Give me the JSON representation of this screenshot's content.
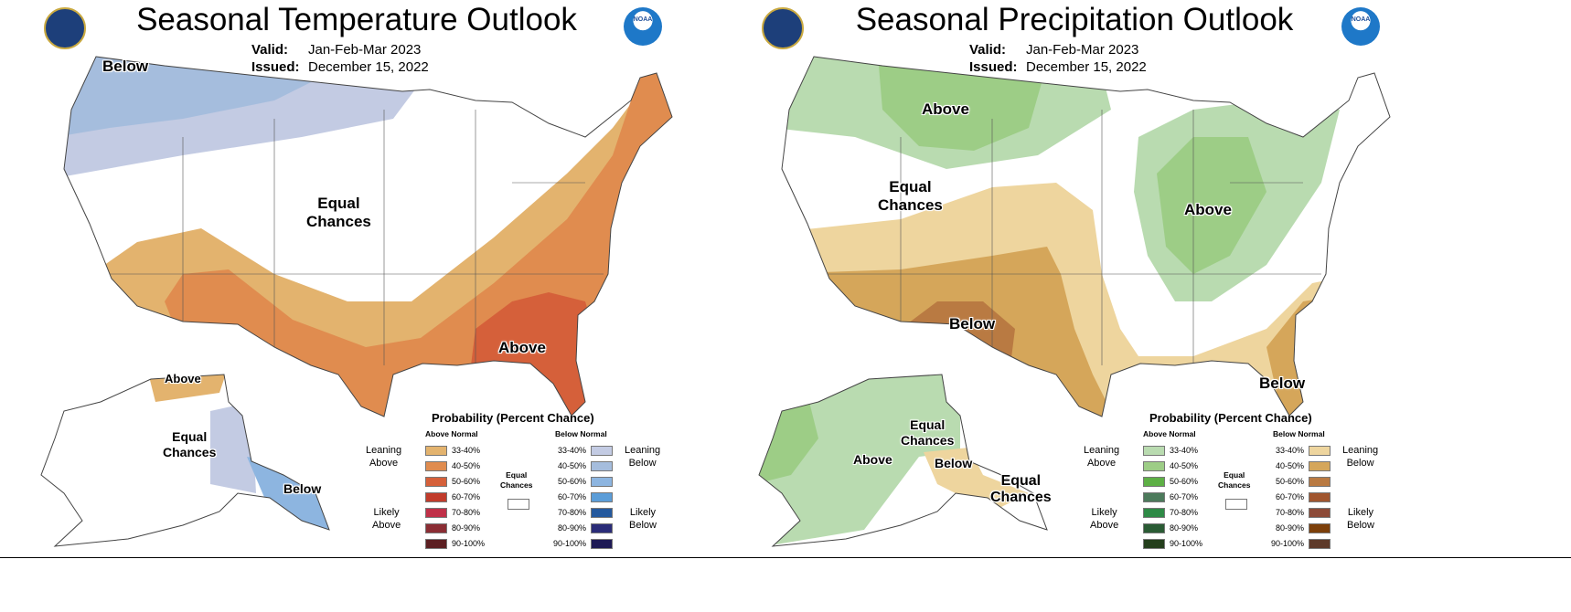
{
  "panels": [
    {
      "title": "Seasonal Temperature Outlook",
      "valid_label": "Valid:",
      "valid": "Jan-Feb-Mar 2023",
      "issued_label": "Issued:",
      "issued": "December 15, 2022",
      "logos": {
        "left": "department-of-commerce-seal",
        "right": "noaa-logo",
        "right_text": "NOAA"
      },
      "map_labels": [
        "Below",
        "Equal\nChances",
        "Above",
        "Above",
        "Equal\nChances",
        "Below"
      ],
      "legend": {
        "title": "Probability (Percent Chance)",
        "above_header": "Above Normal",
        "below_header": "Below Normal",
        "leaning_above": "Leaning\nAbove",
        "likely_above": "Likely\nAbove",
        "leaning_below": "Leaning\nBelow",
        "likely_below": "Likely\nBelow",
        "equal": "Equal\nChances",
        "ranges": [
          "33-40%",
          "40-50%",
          "50-60%",
          "60-70%",
          "70-80%",
          "80-90%",
          "90-100%"
        ],
        "above_colors": [
          "#e3b36e",
          "#e08c4f",
          "#d5603a",
          "#c13b2b",
          "#c03048",
          "#8b2d34",
          "#5c1f22"
        ],
        "below_colors": [
          "#c3cbe3",
          "#a5bddd",
          "#8db5e0",
          "#5b9dd8",
          "#24599e",
          "#2a2c78",
          "#1e1a55"
        ]
      }
    },
    {
      "title": "Seasonal Precipitation Outlook",
      "valid_label": "Valid:",
      "valid": "Jan-Feb-Mar 2023",
      "issued_label": "Issued:",
      "issued": "December 15, 2022",
      "logos": {
        "left": "department-of-commerce-seal",
        "right": "noaa-logo",
        "right_text": "NOAA"
      },
      "map_labels": [
        "Above",
        "Equal\nChances",
        "Above",
        "Below",
        "Below",
        "Equal\nChances",
        "Above",
        "Below",
        "Equal\nChances"
      ],
      "legend": {
        "title": "Probability (Percent Chance)",
        "above_header": "Above Normal",
        "below_header": "Below Normal",
        "leaning_above": "Leaning\nAbove",
        "likely_above": "Likely\nAbove",
        "leaning_below": "Leaning\nBelow",
        "likely_below": "Likely\nBelow",
        "equal": "Equal\nChances",
        "ranges": [
          "33-40%",
          "40-50%",
          "50-60%",
          "60-70%",
          "70-80%",
          "80-90%",
          "90-100%"
        ],
        "above_colors": [
          "#b9dbb0",
          "#9dcd86",
          "#5daf45",
          "#4c7a5b",
          "#2e8a46",
          "#2a5b34",
          "#243f1c"
        ],
        "below_colors": [
          "#eed59e",
          "#d5a65a",
          "#b97a42",
          "#a0552e",
          "#8c4a38",
          "#7c3f0a",
          "#5e3a2a"
        ]
      }
    }
  ]
}
